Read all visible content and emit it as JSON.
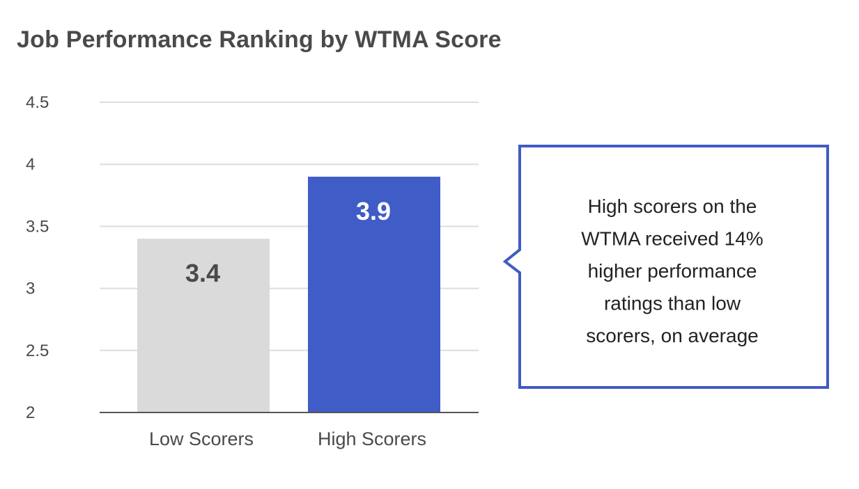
{
  "title": "Job Performance Ranking by WTMA Score",
  "colors": {
    "title": "#4a4a4a",
    "axis_text": "#4a4a4a",
    "grid": "#dddddd",
    "baseline": "#555555",
    "callout_border": "#3f5bc4",
    "callout_text": "#222222"
  },
  "chart_data": {
    "type": "bar",
    "title": "Job Performance Ranking by WTMA Score",
    "xlabel": "",
    "ylabel": "",
    "categories": [
      "Low Scorers",
      "High Scorers"
    ],
    "values": [
      3.4,
      3.9
    ],
    "data_labels": [
      "3.4",
      "3.9"
    ],
    "bar_colors": [
      "#d9dad9",
      "#405cc6"
    ],
    "label_colors": [
      "#4a4a4a",
      "#ffffff"
    ],
    "ylim": [
      2,
      4.5
    ],
    "yticks": [
      2,
      2.5,
      3,
      3.5,
      4,
      4.5
    ],
    "ytick_labels": [
      "2",
      "2.5",
      "3",
      "3.5",
      "4",
      "4.5"
    ],
    "grid": true,
    "legend": "none"
  },
  "callout": {
    "lines": [
      "High scorers on the",
      "WTMA received 14%",
      "higher performance",
      "ratings than low",
      "scorers, on average"
    ]
  }
}
